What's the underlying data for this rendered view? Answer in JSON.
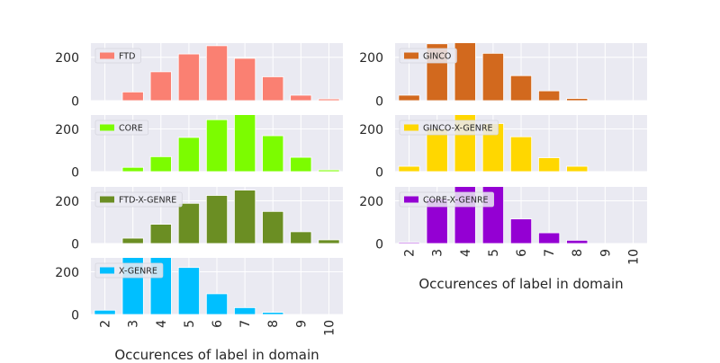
{
  "chart_data": [
    {
      "type": "bar",
      "legend": "FTD",
      "color": "#FA8072",
      "categories": [
        "2",
        "3",
        "4",
        "5",
        "6",
        "7",
        "8",
        "9",
        "10"
      ],
      "values": [
        0,
        40,
        133,
        215,
        253,
        195,
        110,
        25,
        8
      ],
      "ylim": [
        0,
        265
      ],
      "yticks": [
        0,
        200
      ],
      "show_xticks": false,
      "xlabel": ""
    },
    {
      "type": "bar",
      "legend": "GINCO",
      "color": "#D2691E",
      "categories": [
        "2",
        "3",
        "4",
        "5",
        "6",
        "7",
        "8",
        "9",
        "10"
      ],
      "values": [
        25,
        262,
        270,
        218,
        115,
        45,
        10,
        0,
        0
      ],
      "ylim": [
        0,
        265
      ],
      "yticks": [
        0,
        200
      ],
      "show_xticks": false,
      "xlabel": ""
    },
    {
      "type": "bar",
      "legend": "CORE",
      "color": "#7CFC00",
      "categories": [
        "2",
        "3",
        "4",
        "5",
        "6",
        "7",
        "8",
        "9",
        "10"
      ],
      "values": [
        0,
        20,
        70,
        160,
        243,
        270,
        168,
        67,
        8
      ],
      "ylim": [
        0,
        265
      ],
      "yticks": [
        0,
        200
      ],
      "show_xticks": false,
      "xlabel": ""
    },
    {
      "type": "bar",
      "legend": "GINCO-X-GENRE",
      "color": "#FFD700",
      "categories": [
        "2",
        "3",
        "4",
        "5",
        "6",
        "7",
        "8",
        "9",
        "10"
      ],
      "values": [
        25,
        200,
        270,
        225,
        163,
        65,
        25,
        0,
        0
      ],
      "ylim": [
        0,
        265
      ],
      "yticks": [
        0,
        200
      ],
      "show_xticks": false,
      "xlabel": ""
    },
    {
      "type": "bar",
      "legend": "FTD-X-GENRE",
      "color": "#6B8E23",
      "categories": [
        "2",
        "3",
        "4",
        "5",
        "6",
        "7",
        "8",
        "9",
        "10"
      ],
      "values": [
        0,
        25,
        90,
        188,
        225,
        250,
        150,
        55,
        17
      ],
      "ylim": [
        0,
        265
      ],
      "yticks": [
        0,
        200
      ],
      "show_xticks": false,
      "xlabel": ""
    },
    {
      "type": "bar",
      "legend": "CORE-X-GENRE",
      "color": "#9400D3",
      "categories": [
        "2",
        "3",
        "4",
        "5",
        "6",
        "7",
        "8",
        "9",
        "10"
      ],
      "values": [
        5,
        210,
        270,
        270,
        115,
        50,
        15,
        0,
        0
      ],
      "ylim": [
        0,
        265
      ],
      "yticks": [
        0,
        200
      ],
      "show_xticks": true,
      "xlabel": "Occurences of label in domain"
    },
    {
      "type": "bar",
      "legend": "X-GENRE",
      "color": "#00BFFF",
      "categories": [
        "2",
        "3",
        "4",
        "5",
        "6",
        "7",
        "8",
        "9",
        "10"
      ],
      "values": [
        20,
        270,
        270,
        220,
        97,
        32,
        10,
        0,
        0
      ],
      "ylim": [
        0,
        265
      ],
      "yticks": [
        0,
        200
      ],
      "show_xticks": true,
      "xlabel": "Occurences of label in domain"
    }
  ]
}
